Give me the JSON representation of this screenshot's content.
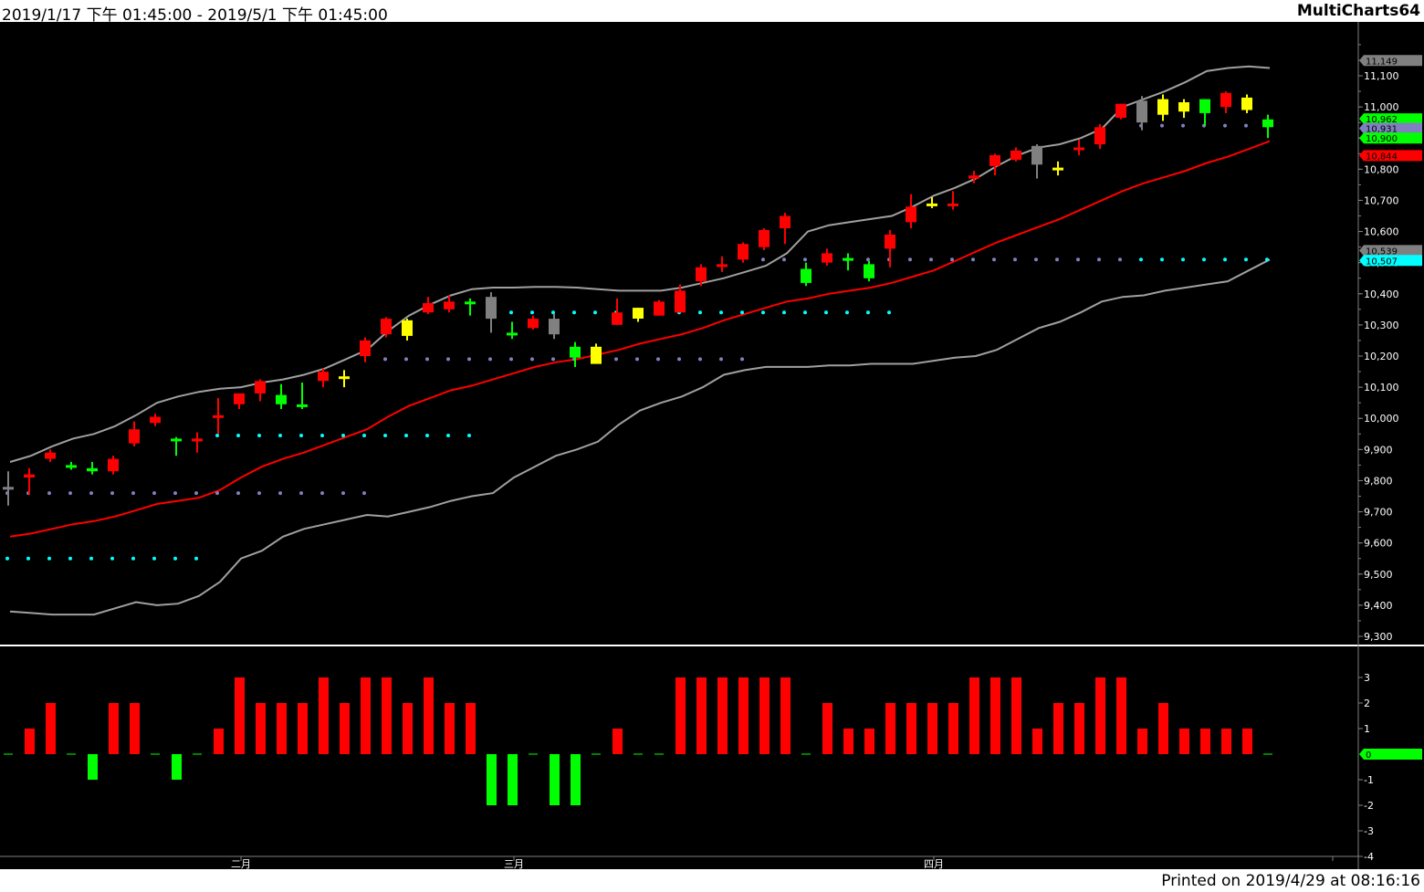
{
  "header": {
    "date_range": "2019/1/17 下午 01:45:00 - 2019/5/1 下午 01:45:00",
    "brand": "MultiCharts64"
  },
  "footer": {
    "printed": "Printed on 2019/4/29 at 08:16:16"
  },
  "colors": {
    "background": "#000000",
    "up_candle": "#ff0000",
    "down_candle": "#00ff00",
    "neutral_candle": "#808080",
    "yellow_candle": "#ffff00",
    "upper_band": "#a0a0a0",
    "lower_band": "#a0a0a0",
    "mid_line": "#ff0000",
    "dot_cyan": "#00ffff",
    "dot_lavender": "#8080c0",
    "osc_up": "#ff0000",
    "osc_down": "#00ff00"
  },
  "chart_data": [
    {
      "type": "candlestick",
      "title": "",
      "ylim": [
        9250,
        11300
      ],
      "yticks": [
        "9,300",
        "9,400",
        "9,500",
        "9,600",
        "9,700",
        "9,800",
        "9,900",
        "10,000",
        "10,100",
        "10,200",
        "10,300",
        "10,400",
        "10,500",
        "10,600",
        "10,700",
        "10,800",
        "10,900",
        "11,000",
        "11,100"
      ],
      "ytick_values": [
        9300,
        9400,
        9500,
        9600,
        9700,
        9800,
        9900,
        10000,
        10100,
        10200,
        10300,
        10400,
        10500,
        10600,
        10700,
        10800,
        10900,
        11000,
        11100
      ],
      "month_labels": [
        {
          "label": "二月",
          "index": 11
        },
        {
          "label": "三月",
          "index": 24
        },
        {
          "label": "四月",
          "index": 44
        }
      ],
      "candles": [
        {
          "o": 9780,
          "h": 9830,
          "l": 9720,
          "c": 9780,
          "color": "gray"
        },
        {
          "o": 9810,
          "h": 9840,
          "l": 9755,
          "c": 9820,
          "color": "red"
        },
        {
          "o": 9870,
          "h": 9900,
          "l": 9860,
          "c": 9890,
          "color": "red"
        },
        {
          "o": 9850,
          "h": 9860,
          "l": 9835,
          "c": 9850,
          "color": "green"
        },
        {
          "o": 9840,
          "h": 9860,
          "l": 9820,
          "c": 9830,
          "color": "green"
        },
        {
          "o": 9830,
          "h": 9880,
          "l": 9820,
          "c": 9870,
          "color": "red"
        },
        {
          "o": 9920,
          "h": 9990,
          "l": 9910,
          "c": 9965,
          "color": "red"
        },
        {
          "o": 9985,
          "h": 10015,
          "l": 9975,
          "c": 10005,
          "color": "red"
        },
        {
          "o": 9935,
          "h": 9940,
          "l": 9880,
          "c": 9935,
          "color": "green"
        },
        {
          "o": 9935,
          "h": 9955,
          "l": 9890,
          "c": 9935,
          "color": "red"
        },
        {
          "o": 10005,
          "h": 10065,
          "l": 9950,
          "c": 10010,
          "color": "red"
        },
        {
          "o": 10045,
          "h": 10080,
          "l": 10030,
          "c": 10080,
          "color": "red"
        },
        {
          "o": 10080,
          "h": 10125,
          "l": 10055,
          "c": 10120,
          "color": "red"
        },
        {
          "o": 10075,
          "h": 10110,
          "l": 10030,
          "c": 10045,
          "color": "green"
        },
        {
          "o": 10040,
          "h": 10115,
          "l": 10030,
          "c": 10045,
          "color": "green"
        },
        {
          "o": 10120,
          "h": 10160,
          "l": 10100,
          "c": 10150,
          "color": "red"
        },
        {
          "o": 10130,
          "h": 10155,
          "l": 10100,
          "c": 10135,
          "color": "yellow"
        },
        {
          "o": 10200,
          "h": 10260,
          "l": 10180,
          "c": 10250,
          "color": "red"
        },
        {
          "o": 10270,
          "h": 10325,
          "l": 10260,
          "c": 10320,
          "color": "red"
        },
        {
          "o": 10315,
          "h": 10320,
          "l": 10250,
          "c": 10265,
          "color": "yellow"
        },
        {
          "o": 10340,
          "h": 10390,
          "l": 10335,
          "c": 10370,
          "color": "red"
        },
        {
          "o": 10350,
          "h": 10395,
          "l": 10340,
          "c": 10375,
          "color": "red"
        },
        {
          "o": 10375,
          "h": 10385,
          "l": 10330,
          "c": 10375,
          "color": "green"
        },
        {
          "o": 10390,
          "h": 10405,
          "l": 10275,
          "c": 10320,
          "color": "gray"
        },
        {
          "o": 10275,
          "h": 10310,
          "l": 10255,
          "c": 10275,
          "color": "green"
        },
        {
          "o": 10290,
          "h": 10330,
          "l": 10285,
          "c": 10320,
          "color": "red"
        },
        {
          "o": 10320,
          "h": 10335,
          "l": 10255,
          "c": 10270,
          "color": "gray"
        },
        {
          "o": 10230,
          "h": 10245,
          "l": 10165,
          "c": 10195,
          "color": "green"
        },
        {
          "o": 10230,
          "h": 10240,
          "l": 10175,
          "c": 10175,
          "color": "yellow"
        },
        {
          "o": 10300,
          "h": 10385,
          "l": 10300,
          "c": 10340,
          "color": "red"
        },
        {
          "o": 10355,
          "h": 10355,
          "l": 10310,
          "c": 10320,
          "color": "yellow"
        },
        {
          "o": 10330,
          "h": 10380,
          "l": 10330,
          "c": 10375,
          "color": "red"
        },
        {
          "o": 10340,
          "h": 10430,
          "l": 10340,
          "c": 10410,
          "color": "red"
        },
        {
          "o": 10440,
          "h": 10495,
          "l": 10425,
          "c": 10485,
          "color": "red"
        },
        {
          "o": 10490,
          "h": 10520,
          "l": 10470,
          "c": 10495,
          "color": "red"
        },
        {
          "o": 10510,
          "h": 10565,
          "l": 10500,
          "c": 10560,
          "color": "red"
        },
        {
          "o": 10550,
          "h": 10610,
          "l": 10540,
          "c": 10605,
          "color": "red"
        },
        {
          "o": 10610,
          "h": 10660,
          "l": 10560,
          "c": 10650,
          "color": "red"
        },
        {
          "o": 10480,
          "h": 10500,
          "l": 10425,
          "c": 10435,
          "color": "green"
        },
        {
          "o": 10500,
          "h": 10545,
          "l": 10490,
          "c": 10530,
          "color": "red"
        },
        {
          "o": 10515,
          "h": 10530,
          "l": 10475,
          "c": 10515,
          "color": "green"
        },
        {
          "o": 10495,
          "h": 10505,
          "l": 10440,
          "c": 10450,
          "color": "green"
        },
        {
          "o": 10545,
          "h": 10605,
          "l": 10485,
          "c": 10590,
          "color": "red"
        },
        {
          "o": 10630,
          "h": 10720,
          "l": 10610,
          "c": 10680,
          "color": "red"
        },
        {
          "o": 10690,
          "h": 10710,
          "l": 10675,
          "c": 10690,
          "color": "yellow"
        },
        {
          "o": 10690,
          "h": 10730,
          "l": 10670,
          "c": 10690,
          "color": "red"
        },
        {
          "o": 10770,
          "h": 10795,
          "l": 10755,
          "c": 10780,
          "color": "red"
        },
        {
          "o": 10810,
          "h": 10850,
          "l": 10780,
          "c": 10845,
          "color": "red"
        },
        {
          "o": 10830,
          "h": 10870,
          "l": 10825,
          "c": 10860,
          "color": "red"
        },
        {
          "o": 10875,
          "h": 10880,
          "l": 10770,
          "c": 10815,
          "color": "gray"
        },
        {
          "o": 10805,
          "h": 10825,
          "l": 10780,
          "c": 10805,
          "color": "yellow"
        },
        {
          "o": 10870,
          "h": 10895,
          "l": 10845,
          "c": 10870,
          "color": "red"
        },
        {
          "o": 10880,
          "h": 10945,
          "l": 10865,
          "c": 10935,
          "color": "red"
        },
        {
          "o": 10965,
          "h": 11010,
          "l": 10960,
          "c": 11010,
          "color": "red"
        },
        {
          "o": 11020,
          "h": 11035,
          "l": 10925,
          "c": 10950,
          "color": "gray"
        },
        {
          "o": 11025,
          "h": 11040,
          "l": 10955,
          "c": 10975,
          "color": "yellow"
        },
        {
          "o": 11015,
          "h": 11025,
          "l": 10965,
          "c": 10985,
          "color": "yellow"
        },
        {
          "o": 10980,
          "h": 11025,
          "l": 10940,
          "c": 11025,
          "color": "green"
        },
        {
          "o": 11000,
          "h": 11050,
          "l": 10980,
          "c": 11045,
          "color": "red"
        },
        {
          "o": 11030,
          "h": 11040,
          "l": 10980,
          "c": 10990,
          "color": "yellow"
        },
        {
          "o": 10960,
          "h": 10975,
          "l": 10900,
          "c": 10935,
          "color": "green"
        }
      ],
      "upper_band": [
        9860,
        9880,
        9910,
        9935,
        9950,
        9975,
        10010,
        10050,
        10070,
        10085,
        10095,
        10100,
        10115,
        10125,
        10140,
        10160,
        10190,
        10220,
        10280,
        10330,
        10365,
        10395,
        10415,
        10420,
        10420,
        10422,
        10422,
        10420,
        10415,
        10410,
        10410,
        10410,
        10420,
        10435,
        10450,
        10470,
        10490,
        10530,
        10600,
        10620,
        10630,
        10640,
        10650,
        10680,
        10715,
        10740,
        10770,
        10810,
        10845,
        10870,
        10880,
        10900,
        10930,
        11000,
        11025,
        11050,
        11080,
        11115,
        11125,
        11130,
        11125
      ],
      "lower_band": [
        9380,
        9375,
        9370,
        9370,
        9370,
        9390,
        9410,
        9400,
        9405,
        9430,
        9475,
        9550,
        9575,
        9620,
        9645,
        9660,
        9675,
        9690,
        9685,
        9700,
        9715,
        9735,
        9750,
        9760,
        9810,
        9845,
        9880,
        9900,
        9925,
        9980,
        10025,
        10050,
        10070,
        10100,
        10140,
        10155,
        10165,
        10165,
        10165,
        10170,
        10170,
        10175,
        10175,
        10175,
        10185,
        10195,
        10200,
        10220,
        10255,
        10290,
        10310,
        10340,
        10375,
        10390,
        10395,
        10410,
        10420,
        10430,
        10440,
        10475,
        10510
      ],
      "mid_line": [
        9620,
        9630,
        9645,
        9660,
        9670,
        9685,
        9705,
        9725,
        9735,
        9745,
        9770,
        9810,
        9845,
        9870,
        9890,
        9915,
        9940,
        9965,
        10005,
        10040,
        10065,
        10090,
        10105,
        10125,
        10145,
        10165,
        10180,
        10190,
        10205,
        10220,
        10240,
        10255,
        10270,
        10290,
        10315,
        10335,
        10355,
        10375,
        10385,
        10400,
        10410,
        10420,
        10435,
        10455,
        10475,
        10505,
        10535,
        10565,
        10590,
        10615,
        10640,
        10670,
        10700,
        10730,
        10755,
        10775,
        10795,
        10820,
        10840,
        10865,
        10890
      ],
      "dot_levels": [
        {
          "value": 9550,
          "from": 0,
          "to": 9,
          "color": "cyan"
        },
        {
          "value": 9760,
          "from": 0,
          "to": 17,
          "color": "lavender"
        },
        {
          "value": 9945,
          "from": 10,
          "to": 22,
          "color": "cyan"
        },
        {
          "value": 10190,
          "from": 18,
          "to": 35,
          "color": "lavender"
        },
        {
          "value": 10340,
          "from": 23,
          "to": 42,
          "color": "cyan"
        },
        {
          "value": 10510,
          "from": 36,
          "to": 53,
          "color": "lavender"
        },
        {
          "value": 10510,
          "from": 54,
          "to": 60,
          "color": "cyan"
        },
        {
          "value": 10940,
          "from": 54,
          "to": 60,
          "color": "lavender"
        }
      ],
      "price_badges": [
        {
          "value": 11149,
          "label": "11,149",
          "color": "#808080"
        },
        {
          "value": 10962,
          "label": "10,962",
          "color": "#00ff00"
        },
        {
          "value": 10931,
          "label": "10,931",
          "color": "#8080c0"
        },
        {
          "value": 10900,
          "label": "10,900",
          "color": "#00ff00"
        },
        {
          "value": 10844,
          "label": "10,844",
          "color": "#ff0000"
        },
        {
          "value": 10539,
          "label": "10,539",
          "color": "#808080"
        },
        {
          "value": 10507,
          "label": "10,507",
          "color": "#00ffff"
        }
      ]
    },
    {
      "type": "bar",
      "title": "",
      "ylim": [
        -4,
        3.5
      ],
      "yticks": [
        "3",
        "2",
        "1",
        "-1",
        "-2",
        "-3",
        "-4"
      ],
      "ytick_values": [
        3,
        2,
        1,
        -1,
        -2,
        -3,
        -4
      ],
      "values": [
        0,
        1,
        2,
        0,
        -1,
        2,
        2,
        0,
        -1,
        0,
        1,
        3,
        2,
        2,
        2,
        3,
        2,
        3,
        3,
        2,
        3,
        2,
        2,
        -2,
        -2,
        0,
        -2,
        -2,
        0,
        1,
        0,
        0,
        3,
        3,
        3,
        3,
        3,
        3,
        0,
        2,
        1,
        1,
        2,
        2,
        2,
        2,
        3,
        3,
        3,
        1,
        2,
        2,
        3,
        3,
        1,
        2,
        1,
        1,
        1,
        1,
        0
      ],
      "zero_badge": {
        "value": 0,
        "label": "0",
        "color": "#00ff00"
      }
    }
  ]
}
